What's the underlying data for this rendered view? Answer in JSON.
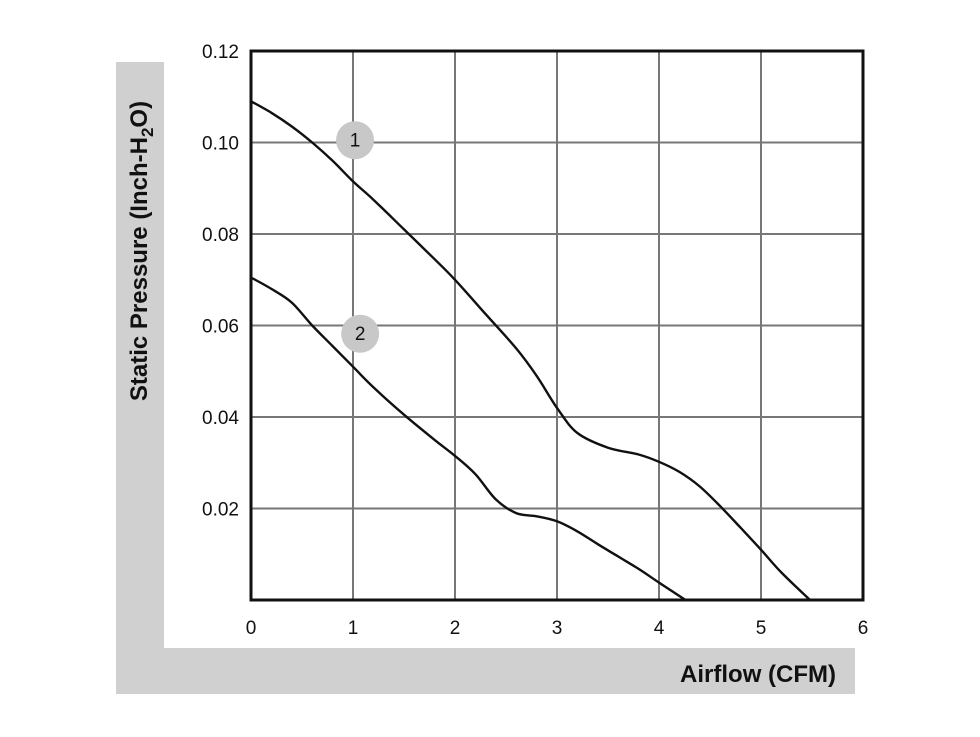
{
  "chart_data": {
    "type": "line",
    "title": "",
    "xlabel": "Airflow (CFM)",
    "ylabel": {
      "prefix": "Static Pressure (Inch-H",
      "subscript": "2",
      "suffix": "O)"
    },
    "xlim": [
      0,
      6
    ],
    "ylim": [
      0,
      0.12
    ],
    "x_ticks": [
      "0",
      "1",
      "2",
      "3",
      "4",
      "5",
      "6"
    ],
    "y_ticks": [
      "0.02",
      "0.04",
      "0.06",
      "0.08",
      "0.10",
      "0.12"
    ],
    "grid": true,
    "series": [
      {
        "name": "1",
        "x": [
          0,
          0.2,
          0.4,
          0.6,
          0.8,
          1.0,
          1.2,
          1.5,
          1.8,
          2.0,
          2.3,
          2.6,
          2.8,
          3.0,
          3.2,
          3.5,
          3.8,
          4.0,
          4.2,
          4.4,
          4.6,
          4.8,
          5.0,
          5.2,
          5.48
        ],
        "y": [
          0.109,
          0.1065,
          0.1035,
          0.1,
          0.096,
          0.0915,
          0.0875,
          0.081,
          0.0745,
          0.07,
          0.0625,
          0.055,
          0.049,
          0.042,
          0.0365,
          0.0333,
          0.0318,
          0.0302,
          0.028,
          0.0248,
          0.0205,
          0.0158,
          0.011,
          0.006,
          0.0
        ]
      },
      {
        "name": "2",
        "x": [
          0,
          0.2,
          0.4,
          0.6,
          0.8,
          1.0,
          1.2,
          1.5,
          1.8,
          2.0,
          2.2,
          2.4,
          2.6,
          2.8,
          3.0,
          3.2,
          3.4,
          3.6,
          3.8,
          4.0,
          4.26
        ],
        "y": [
          0.0705,
          0.068,
          0.065,
          0.06,
          0.0555,
          0.051,
          0.0465,
          0.0405,
          0.035,
          0.0315,
          0.0275,
          0.022,
          0.019,
          0.0183,
          0.0172,
          0.015,
          0.0122,
          0.0095,
          0.0068,
          0.0038,
          0.0
        ]
      }
    ],
    "annotations": [
      {
        "text": "1",
        "x": 1.02,
        "y": 0.1005
      },
      {
        "text": "2",
        "x": 1.07,
        "y": 0.0582
      }
    ]
  }
}
